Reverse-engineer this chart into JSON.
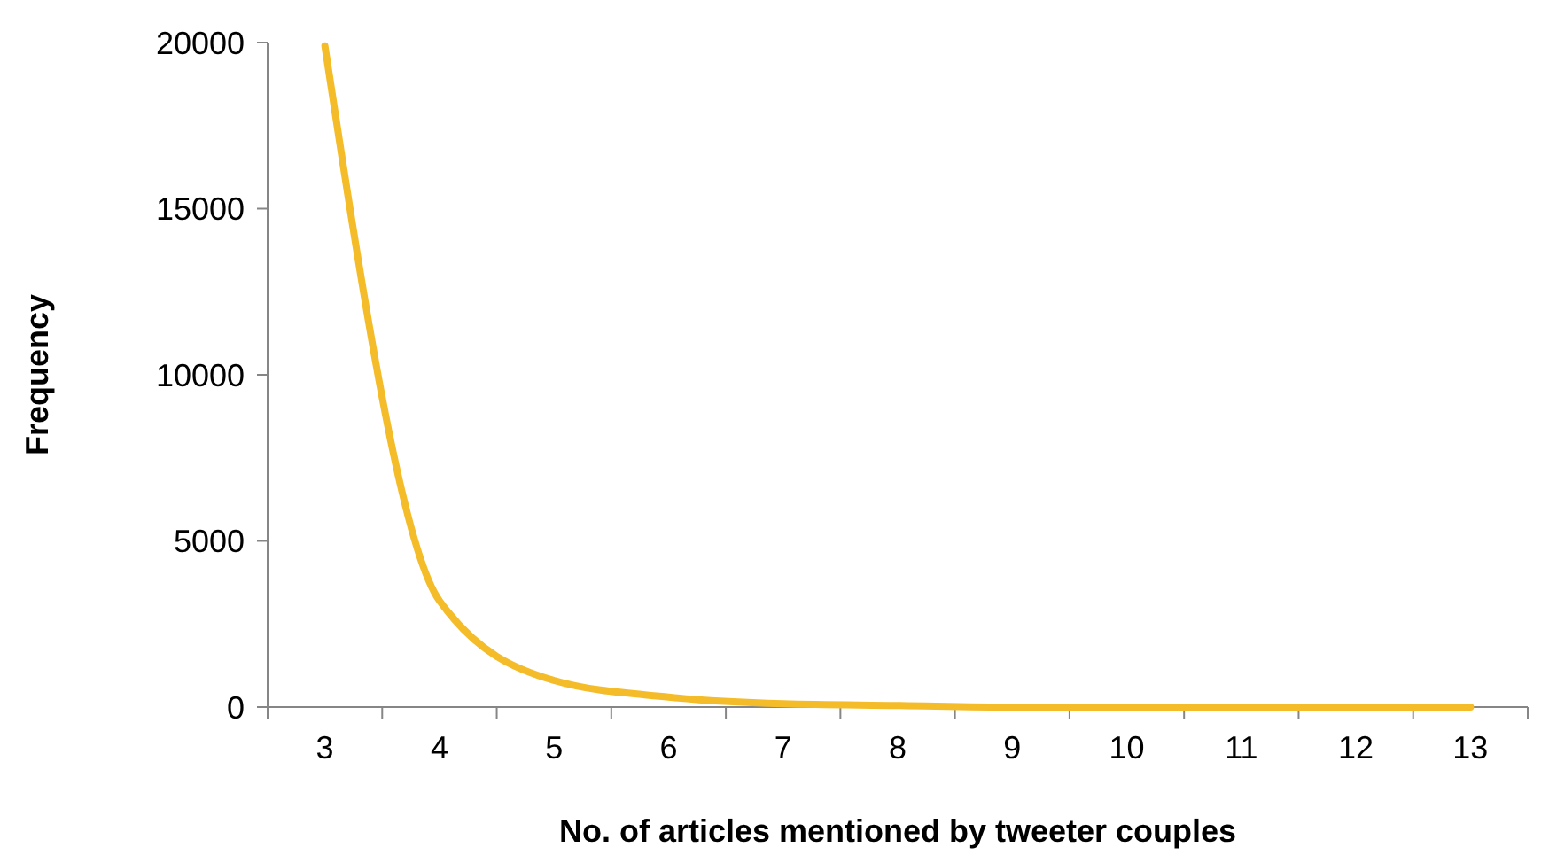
{
  "chart_data": {
    "type": "line",
    "xlabel": "No. of articles mentioned by tweeter couples",
    "ylabel": "Frequency",
    "categories": [
      "3",
      "4",
      "5",
      "6",
      "7",
      "8",
      "9",
      "10",
      "11",
      "12",
      "13"
    ],
    "series": [
      {
        "color": "#f5bc2a",
        "values": [
          19900,
          3200,
          800,
          300,
          100,
          50,
          0,
          0,
          0,
          0,
          0
        ]
      }
    ],
    "ylim": [
      0,
      20000
    ],
    "yticks": [
      0,
      5000,
      10000,
      15000,
      20000
    ],
    "grid": false,
    "marker": "none",
    "line_style": "solid"
  }
}
